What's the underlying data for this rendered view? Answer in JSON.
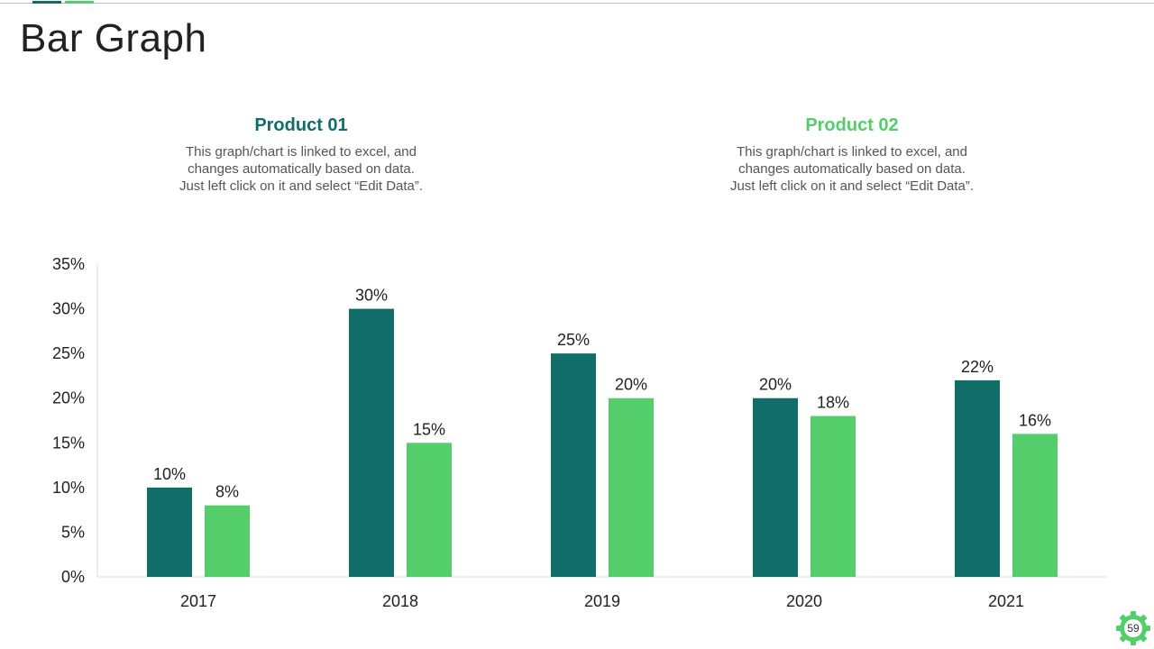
{
  "slide": {
    "title": "Bar Graph",
    "page_number": "59"
  },
  "products": [
    {
      "name": "Product 01",
      "color": "#116d68",
      "desc_line1": "This graph/chart  is linked to excel, and",
      "desc_line2": "changes automatically based on data.",
      "desc_line3": "Just left click on it and select “Edit Data”."
    },
    {
      "name": "Product 02",
      "color": "#54cd6b",
      "desc_line1": "This graph/chart  is linked to excel, and",
      "desc_line2": "changes automatically based on data.",
      "desc_line3": "Just left click on it and select “Edit Data”."
    }
  ],
  "chart_data": {
    "type": "bar",
    "categories": [
      "2017",
      "2018",
      "2019",
      "2020",
      "2021"
    ],
    "series": [
      {
        "name": "Product 01",
        "color": "#116d68",
        "values": [
          10,
          30,
          25,
          20,
          22
        ]
      },
      {
        "name": "Product 02",
        "color": "#54cd6b",
        "values": [
          8,
          15,
          20,
          18,
          16
        ]
      }
    ],
    "ylim": [
      0,
      35
    ],
    "yticks": [
      0,
      5,
      10,
      15,
      20,
      25,
      30,
      35
    ],
    "ytick_labels": [
      "0%",
      "5%",
      "10%",
      "15%",
      "20%",
      "25%",
      "30%",
      "35%"
    ],
    "value_labels": [
      [
        "10%",
        "30%",
        "25%",
        "20%",
        "22%"
      ],
      [
        "8%",
        "15%",
        "20%",
        "18%",
        "16%"
      ]
    ],
    "grid": false,
    "legend": "none"
  },
  "icons": {
    "gear": "gear-icon"
  }
}
